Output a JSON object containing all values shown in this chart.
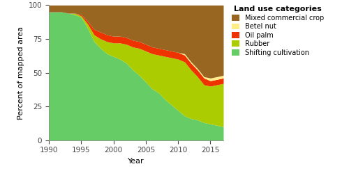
{
  "years": [
    1990,
    1991,
    1992,
    1993,
    1994,
    1995,
    1996,
    1997,
    1998,
    1999,
    2000,
    2001,
    2002,
    2003,
    2004,
    2005,
    2006,
    2007,
    2008,
    2009,
    2010,
    2011,
    2012,
    2013,
    2014,
    2015,
    2016,
    2017
  ],
  "shifting_cultivation": [
    95,
    95,
    95,
    94,
    93,
    91,
    83,
    73,
    68,
    64,
    62,
    60,
    57,
    52,
    48,
    43,
    38,
    35,
    30,
    26,
    22,
    18,
    16,
    15,
    13,
    12,
    11,
    10
  ],
  "rubber": [
    0,
    0,
    0,
    0,
    1,
    1,
    3,
    5,
    7,
    9,
    10,
    12,
    14,
    17,
    20,
    23,
    26,
    28,
    32,
    35,
    38,
    40,
    36,
    32,
    28,
    28,
    30,
    32
  ],
  "oil_palm": [
    0,
    0,
    0,
    0,
    0,
    1,
    2,
    4,
    5,
    5,
    5,
    5,
    5,
    5,
    5,
    5,
    5,
    5,
    5,
    5,
    5,
    5,
    5,
    5,
    5,
    4,
    4,
    4
  ],
  "betel_nut": [
    0,
    0,
    0,
    0,
    0,
    0,
    0,
    0,
    0,
    0,
    0,
    0,
    0,
    0,
    0,
    0,
    0,
    0,
    0,
    0,
    0,
    1,
    1,
    1,
    1,
    2,
    2,
    2
  ],
  "mixed_commercial": [
    5,
    5,
    5,
    6,
    6,
    7,
    12,
    18,
    20,
    22,
    23,
    23,
    24,
    26,
    27,
    29,
    31,
    32,
    33,
    34,
    35,
    36,
    42,
    47,
    53,
    54,
    53,
    52
  ],
  "colors": {
    "shifting_cultivation": "#66CC66",
    "rubber": "#AACC00",
    "oil_palm": "#EE3300",
    "betel_nut": "#FFEE88",
    "mixed_commercial": "#996622"
  },
  "legend_labels": [
    "Mixed commercial crop",
    "Betel nut",
    "Oil palm",
    "Rubber",
    "Shifting cultivation"
  ],
  "legend_colors": [
    "#996622",
    "#FFEE88",
    "#EE3300",
    "#AACC00",
    "#66CC66"
  ],
  "xlabel": "Year",
  "ylabel": "Percent of mapped area",
  "legend_title": "Land use categories",
  "ylim": [
    0,
    100
  ],
  "xlim": [
    1990,
    2017
  ],
  "xticks": [
    1990,
    1995,
    2000,
    2005,
    2010,
    2015
  ],
  "yticks": [
    0,
    25,
    50,
    75,
    100
  ],
  "figsize": [
    5.0,
    2.46
  ],
  "dpi": 100
}
